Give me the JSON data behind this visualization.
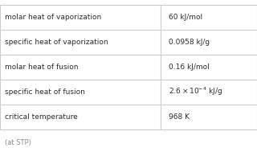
{
  "rows": [
    [
      "molar heat of vaporization",
      "60 kJ/mol"
    ],
    [
      "specific heat of vaporization",
      "0.0958 kJ/g"
    ],
    [
      "molar heat of fusion",
      "0.16 kJ/mol"
    ],
    [
      "specific heat of fusion",
      "2.6×10^{-4} kJ/g"
    ],
    [
      "critical temperature",
      "968 K"
    ]
  ],
  "footnote": "(at STP)",
  "bg_color": "#ffffff",
  "border_color": "#cccccc",
  "text_color": "#2b2b2b",
  "footnote_color": "#888888",
  "col_split": 0.625,
  "figsize": [
    3.2,
    1.89
  ],
  "dpi": 100
}
